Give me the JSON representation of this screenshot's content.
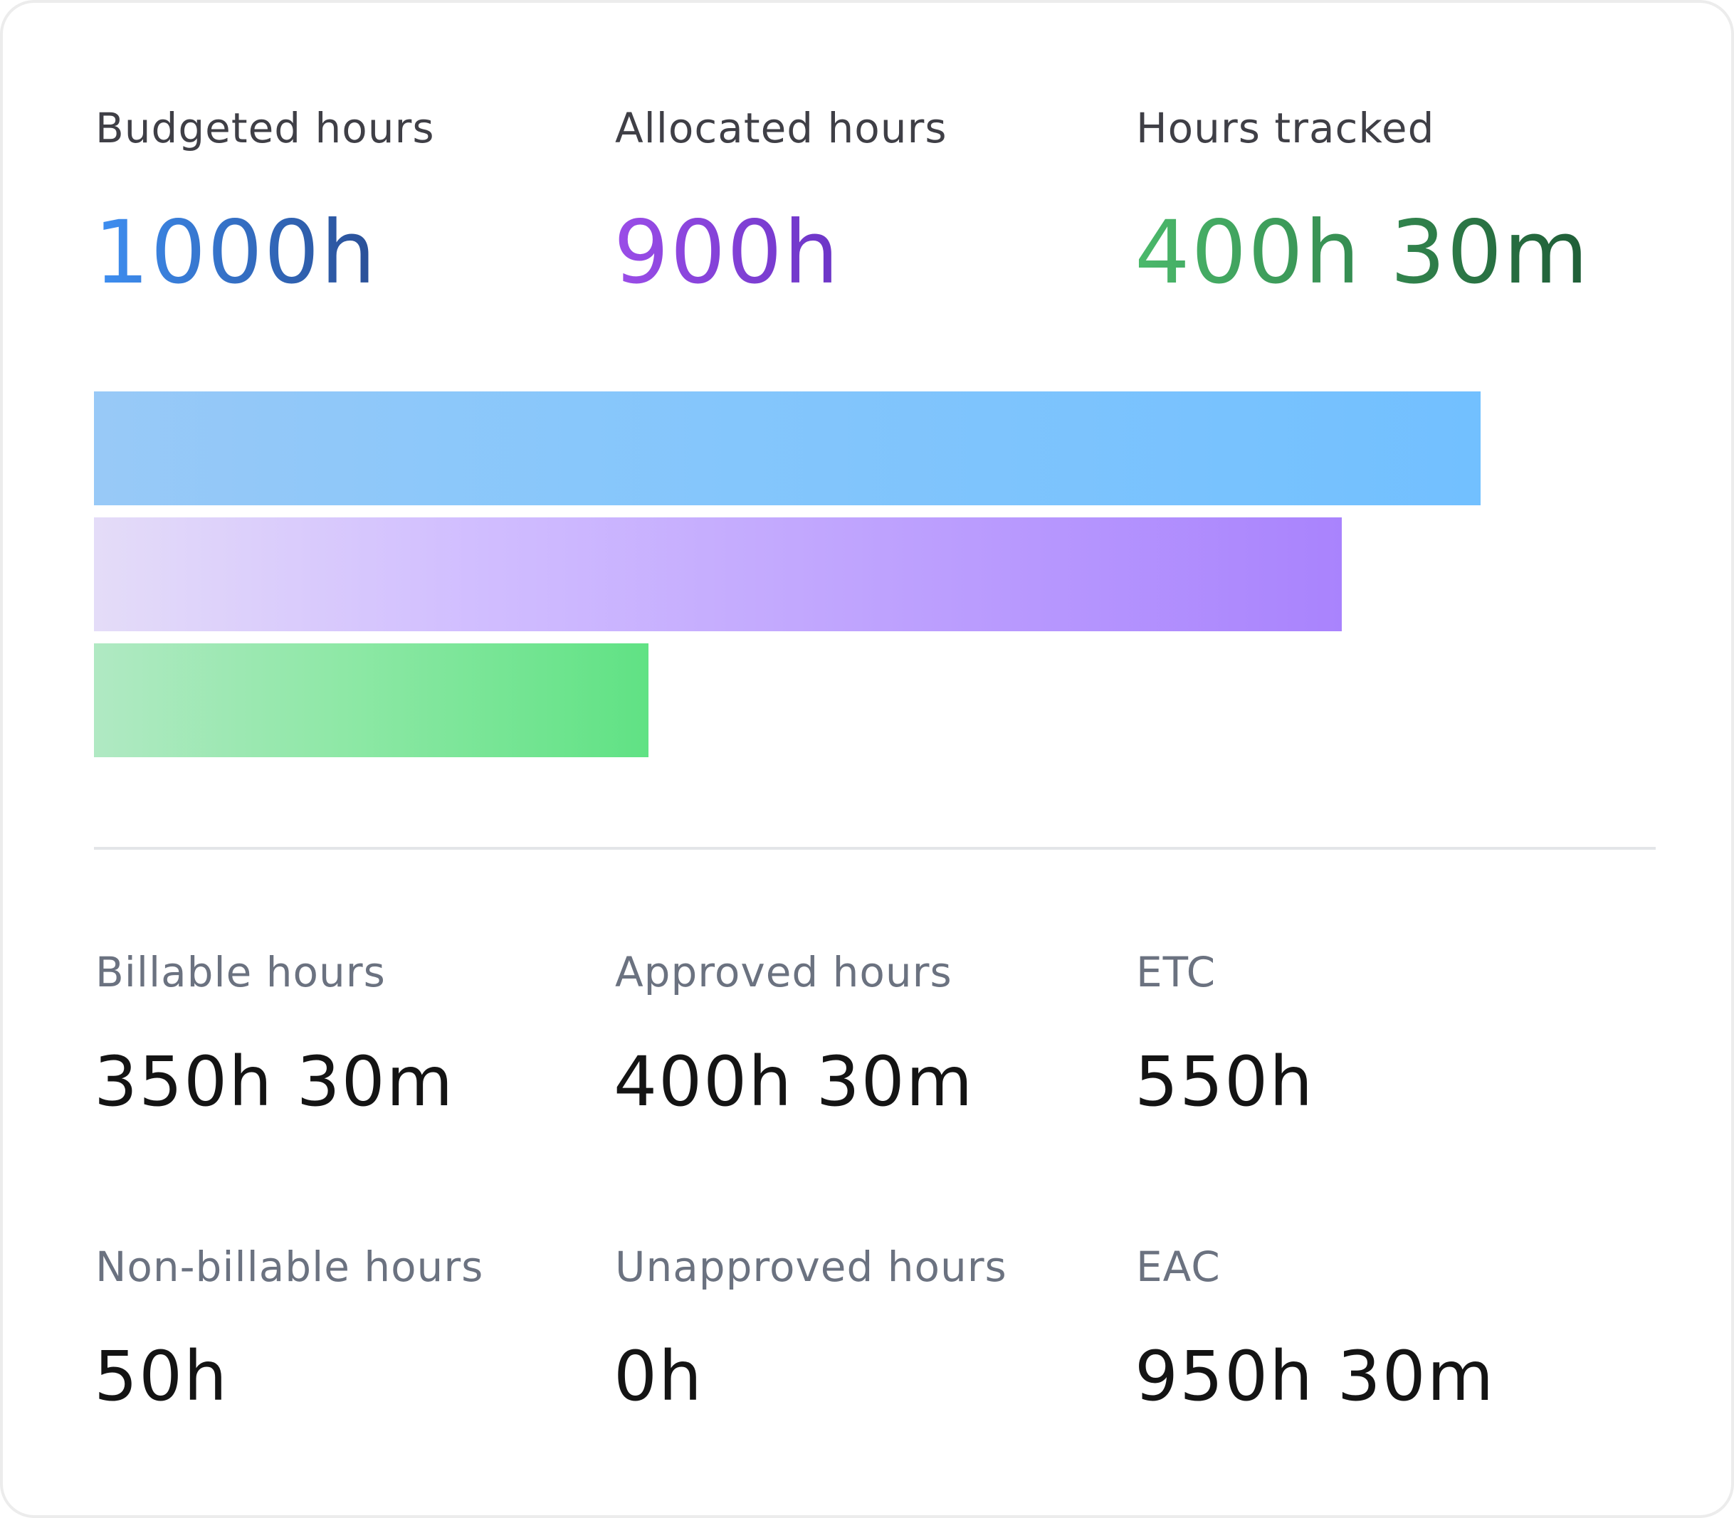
{
  "top_stats": [
    {
      "label": "Budgeted hours",
      "value": "1000h",
      "bar_fraction": 1.0,
      "color": "#3e8ff2"
    },
    {
      "label": "Allocated hours",
      "value": "900h",
      "bar_fraction": 0.9,
      "color": "#9b4de8"
    },
    {
      "label": "Hours tracked",
      "value": "400h 30m",
      "bar_fraction": 0.4,
      "color": "#4bb96b"
    }
  ],
  "details": [
    {
      "label": "Billable hours",
      "value": "350h 30m"
    },
    {
      "label": "Approved hours",
      "value": "400h 30m"
    },
    {
      "label": "ETC",
      "value": "550h"
    },
    {
      "label": "Non-billable hours",
      "value": "50h"
    },
    {
      "label": "Unapproved hours",
      "value": "0h"
    },
    {
      "label": "EAC",
      "value": "950h 30m"
    }
  ]
}
